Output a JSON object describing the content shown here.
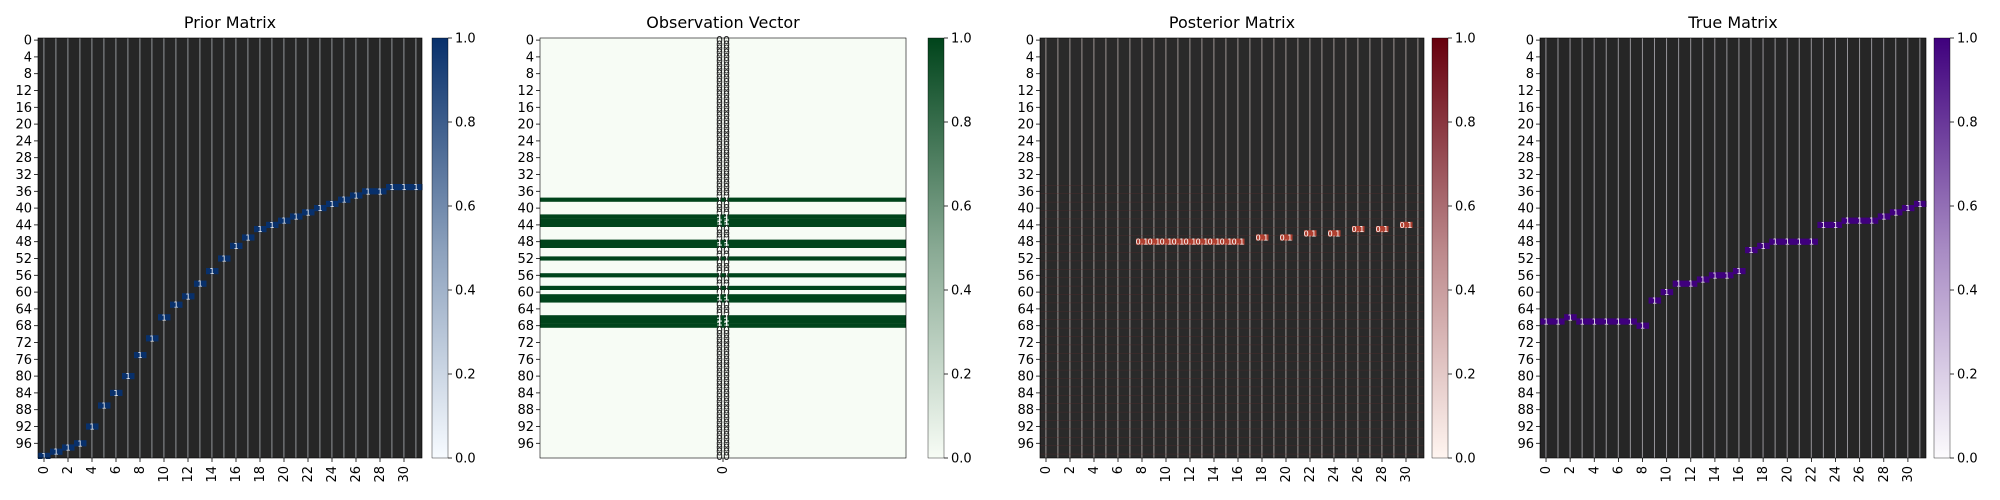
{
  "chart_data": [
    {
      "type": "heatmap",
      "title": "Prior Matrix",
      "xlabel": "",
      "ylabel": "",
      "colormap": "Blues",
      "colormap_hex": [
        "#f7fbff",
        "#08306b"
      ],
      "value_range": [
        0.0,
        1.0
      ],
      "colorbar_ticks": [
        "0.0",
        "0.2",
        "0.4",
        "0.6",
        "0.8",
        "1.0"
      ],
      "n_rows": 100,
      "n_cols": 32,
      "x_tick_labels": [
        "0",
        "2",
        "4",
        "6",
        "8",
        "10",
        "12",
        "14",
        "16",
        "18",
        "20",
        "22",
        "24",
        "26",
        "28",
        "30"
      ],
      "y_tick_labels": [
        "0",
        "4",
        "8",
        "12",
        "16",
        "20",
        "24",
        "28",
        "32",
        "36",
        "40",
        "44",
        "48",
        "52",
        "56",
        "60",
        "64",
        "68",
        "72",
        "76",
        "80",
        "84",
        "88",
        "92",
        "96"
      ],
      "annotated": true,
      "cell_annotation": "0",
      "cell_annotation_high": "1",
      "high_cells": [
        [
          99,
          0
        ],
        [
          98,
          1
        ],
        [
          97,
          2
        ],
        [
          96,
          3
        ],
        [
          92,
          4
        ],
        [
          87,
          5
        ],
        [
          84,
          6
        ],
        [
          80,
          7
        ],
        [
          75,
          8
        ],
        [
          71,
          9
        ],
        [
          66,
          10
        ],
        [
          63,
          11
        ],
        [
          61,
          12
        ],
        [
          58,
          13
        ],
        [
          55,
          14
        ],
        [
          52,
          15
        ],
        [
          49,
          16
        ],
        [
          47,
          17
        ],
        [
          45,
          18
        ],
        [
          44,
          19
        ],
        [
          43,
          20
        ],
        [
          42,
          21
        ],
        [
          41,
          22
        ],
        [
          40,
          23
        ],
        [
          39,
          24
        ],
        [
          38,
          25
        ],
        [
          37,
          26
        ],
        [
          36,
          27
        ],
        [
          36,
          28
        ],
        [
          35,
          29
        ],
        [
          35,
          30
        ],
        [
          35,
          31
        ]
      ]
    },
    {
      "type": "heatmap",
      "title": "Observation Vector",
      "xlabel": "",
      "ylabel": "",
      "colormap": "Greens",
      "colormap_hex": [
        "#f7fcf5",
        "#00441b"
      ],
      "value_range": [
        0.0,
        1.0
      ],
      "colorbar_ticks": [
        "0.0",
        "0.2",
        "0.4",
        "0.6",
        "0.8",
        "1.0"
      ],
      "n_rows": 100,
      "n_cols": 1,
      "x_tick_labels": [
        "0"
      ],
      "y_tick_labels": [
        "0",
        "4",
        "8",
        "12",
        "16",
        "20",
        "24",
        "28",
        "32",
        "36",
        "40",
        "44",
        "48",
        "52",
        "56",
        "60",
        "64",
        "68",
        "72",
        "76",
        "80",
        "84",
        "88",
        "92",
        "96"
      ],
      "annotated": true,
      "cell_annotation": "0",
      "cell_annotation_high": "1",
      "high_rows": [
        38,
        42,
        43,
        44,
        48,
        49,
        52,
        56,
        59,
        61,
        62,
        66,
        67,
        68
      ]
    },
    {
      "type": "heatmap",
      "title": "Posterior Matrix",
      "xlabel": "",
      "ylabel": "",
      "colormap": "Reds",
      "colormap_hex": [
        "#fff5f0",
        "#67000d"
      ],
      "value_range": [
        0.0,
        1.0
      ],
      "colorbar_ticks": [
        "0.0",
        "0.2",
        "0.4",
        "0.6",
        "0.8",
        "1.0"
      ],
      "n_rows": 100,
      "n_cols": 32,
      "x_tick_labels": [
        "0",
        "2",
        "4",
        "6",
        "8",
        "10",
        "12",
        "14",
        "16",
        "18",
        "20",
        "22",
        "24",
        "26",
        "28",
        "30"
      ],
      "y_tick_labels": [
        "0",
        "4",
        "8",
        "12",
        "16",
        "20",
        "24",
        "28",
        "32",
        "36",
        "40",
        "44",
        "48",
        "52",
        "56",
        "60",
        "64",
        "68",
        "72",
        "76",
        "80",
        "84",
        "88",
        "92",
        "96"
      ],
      "annotated": true,
      "cell_annotation": "0",
      "cell_annotation_high": "0.1",
      "cell_value": 0.0,
      "cell_value_high": 0.1,
      "high_cells": [
        [
          48,
          8
        ],
        [
          48,
          9
        ],
        [
          48,
          10
        ],
        [
          48,
          11
        ],
        [
          48,
          12
        ],
        [
          48,
          13
        ],
        [
          48,
          14
        ],
        [
          48,
          15
        ],
        [
          48,
          16
        ],
        [
          47,
          18
        ],
        [
          47,
          20
        ],
        [
          46,
          22
        ],
        [
          46,
          24
        ],
        [
          45,
          26
        ],
        [
          45,
          28
        ],
        [
          44,
          30
        ]
      ]
    },
    {
      "type": "heatmap",
      "title": "True Matrix",
      "xlabel": "",
      "ylabel": "",
      "colormap": "Purples",
      "colormap_hex": [
        "#fcfbfd",
        "#3f007d"
      ],
      "value_range": [
        0.0,
        1.0
      ],
      "colorbar_ticks": [
        "0.0",
        "0.2",
        "0.4",
        "0.6",
        "0.8",
        "1.0"
      ],
      "n_rows": 100,
      "n_cols": 32,
      "x_tick_labels": [
        "0",
        "2",
        "4",
        "6",
        "8",
        "10",
        "12",
        "14",
        "16",
        "18",
        "20",
        "22",
        "24",
        "26",
        "28",
        "30"
      ],
      "y_tick_labels": [
        "0",
        "4",
        "8",
        "12",
        "16",
        "20",
        "24",
        "28",
        "32",
        "36",
        "40",
        "44",
        "48",
        "52",
        "56",
        "60",
        "64",
        "68",
        "72",
        "76",
        "80",
        "84",
        "88",
        "92",
        "96"
      ],
      "annotated": true,
      "cell_annotation": "0",
      "cell_annotation_high": "1",
      "high_cells": [
        [
          67,
          0
        ],
        [
          67,
          1
        ],
        [
          66,
          2
        ],
        [
          67,
          3
        ],
        [
          67,
          4
        ],
        [
          67,
          5
        ],
        [
          67,
          6
        ],
        [
          67,
          7
        ],
        [
          68,
          8
        ],
        [
          62,
          9
        ],
        [
          60,
          10
        ],
        [
          58,
          11
        ],
        [
          58,
          12
        ],
        [
          57,
          13
        ],
        [
          56,
          14
        ],
        [
          56,
          15
        ],
        [
          55,
          16
        ],
        [
          50,
          17
        ],
        [
          49,
          18
        ],
        [
          48,
          19
        ],
        [
          48,
          20
        ],
        [
          48,
          21
        ],
        [
          48,
          22
        ],
        [
          44,
          23
        ],
        [
          44,
          24
        ],
        [
          43,
          25
        ],
        [
          43,
          26
        ],
        [
          43,
          27
        ],
        [
          42,
          28
        ],
        [
          41,
          29
        ],
        [
          40,
          30
        ],
        [
          39,
          31
        ]
      ]
    }
  ]
}
